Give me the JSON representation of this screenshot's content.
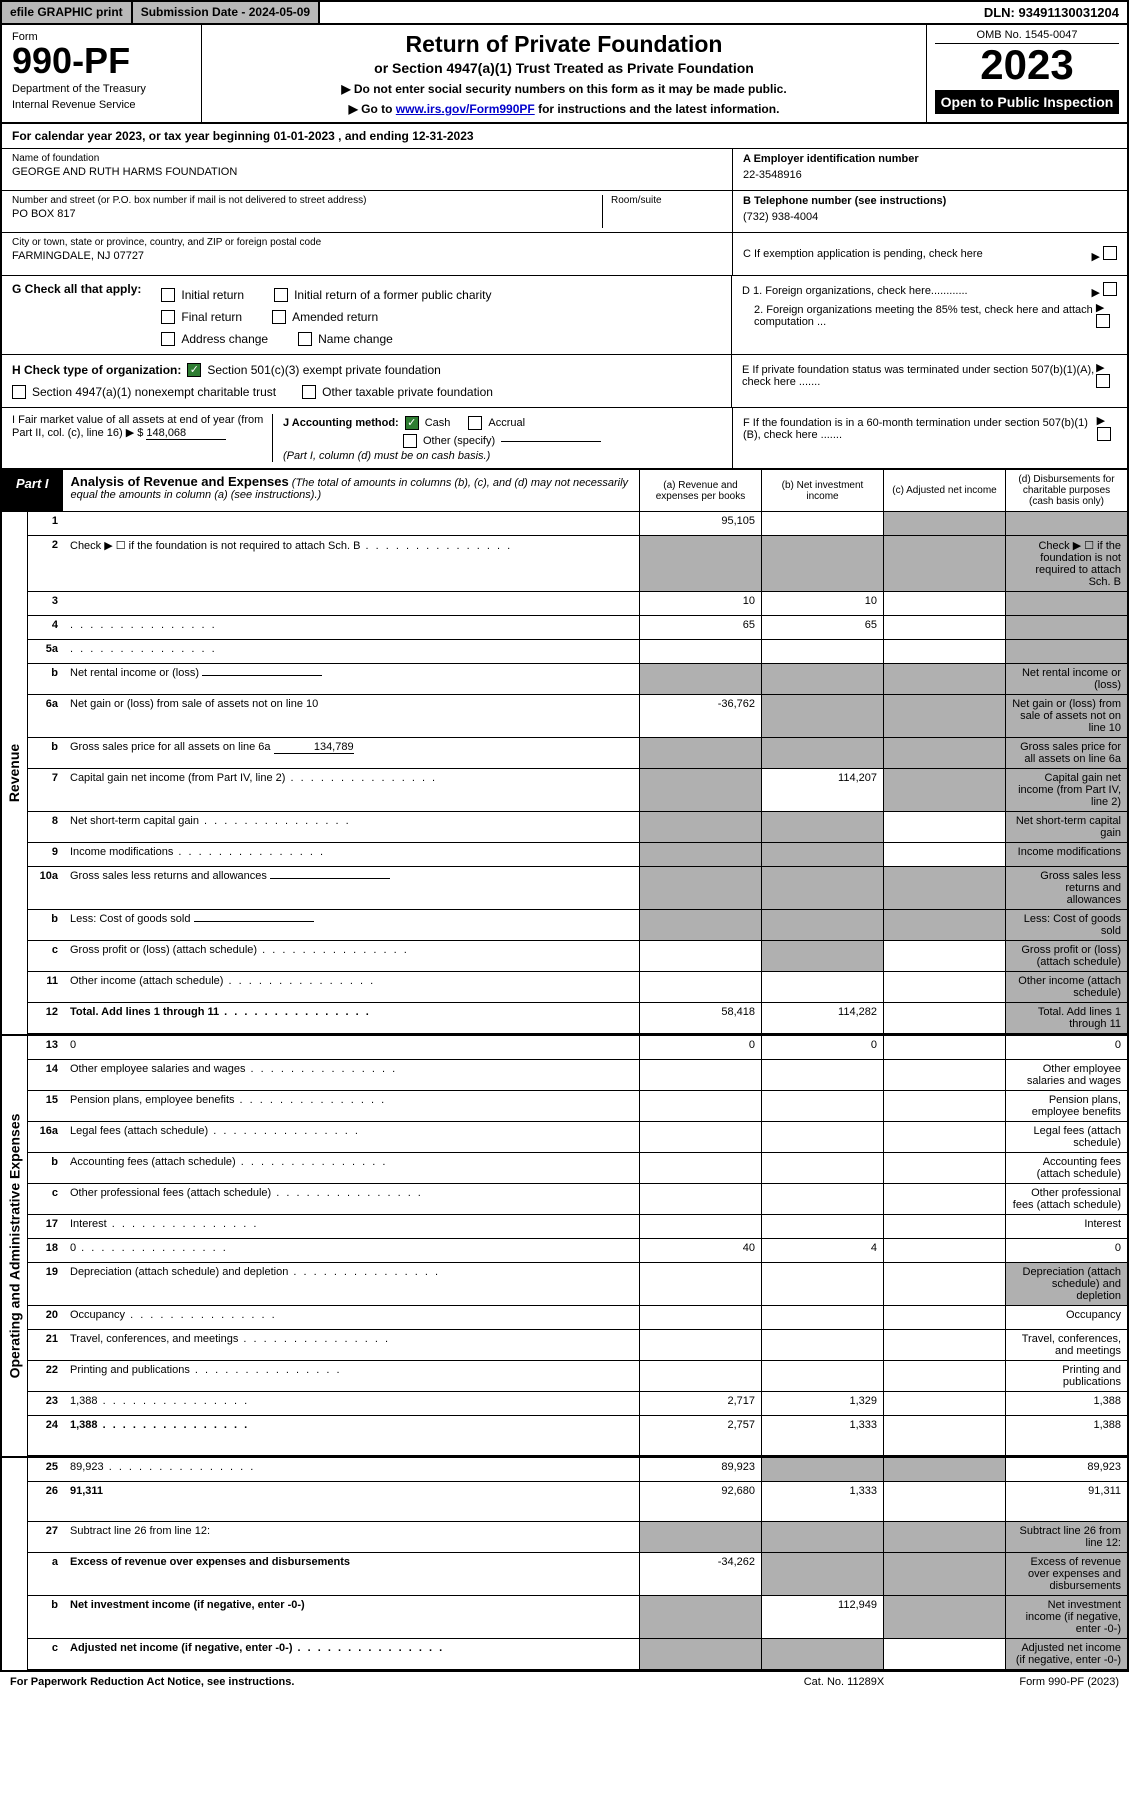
{
  "top_bar": {
    "efile": "efile GRAPHIC print",
    "sub_date_label": "Submission Date - ",
    "sub_date": "2024-05-09",
    "dln_label": "DLN: ",
    "dln": "93491130031204"
  },
  "header": {
    "form_label": "Form",
    "form_number": "990-PF",
    "dept": "Department of the Treasury",
    "irs": "Internal Revenue Service",
    "title_main": "Return of Private Foundation",
    "title_sub": "or Section 4947(a)(1) Trust Treated as Private Foundation",
    "note1": "▶ Do not enter social security numbers on this form as it may be made public.",
    "note2_pre": "▶ Go to ",
    "note2_link": "www.irs.gov/Form990PF",
    "note2_post": " for instructions and the latest information.",
    "omb": "OMB No. 1545-0047",
    "year": "2023",
    "open_public": "Open to Public Inspection"
  },
  "cal_year": {
    "text_pre": "For calendar year 2023, or tax year beginning ",
    "begin": "01-01-2023",
    "text_mid": " , and ending ",
    "end": "12-31-2023"
  },
  "foundation": {
    "name_label": "Name of foundation",
    "name": "GEORGE AND RUTH HARMS FOUNDATION",
    "addr_label": "Number and street (or P.O. box number if mail is not delivered to street address)",
    "addr": "PO BOX 817",
    "room_label": "Room/suite",
    "city_label": "City or town, state or province, country, and ZIP or foreign postal code",
    "city": "FARMINGDALE, NJ  07727",
    "ein_label": "A Employer identification number",
    "ein": "22-3548916",
    "phone_label": "B Telephone number (see instructions)",
    "phone": "(732) 938-4004",
    "c_label": "C If exemption application is pending, check here",
    "d1_label": "D 1. Foreign organizations, check here............",
    "d2_label": "2. Foreign organizations meeting the 85% test, check here and attach computation ...",
    "e_label": "E  If private foundation status was terminated under section 507(b)(1)(A), check here .......",
    "f_label": "F  If the foundation is in a 60-month termination under section 507(b)(1)(B), check here .......",
    "g_label": "G Check all that apply:",
    "g_opts": [
      "Initial return",
      "Initial return of a former public charity",
      "Final return",
      "Amended return",
      "Address change",
      "Name change"
    ],
    "h_label": "H Check type of organization:",
    "h_opt1": "Section 501(c)(3) exempt private foundation",
    "h_opt2": "Section 4947(a)(1) nonexempt charitable trust",
    "h_opt3": "Other taxable private foundation",
    "i_label": "I Fair market value of all assets at end of year (from Part II, col. (c), line 16) ▶ $",
    "i_value": "148,068",
    "j_label": "J Accounting method:",
    "j_cash": "Cash",
    "j_accrual": "Accrual",
    "j_other": "Other (specify)",
    "j_note": "(Part I, column (d) must be on cash basis.)"
  },
  "part1": {
    "label": "Part I",
    "title": "Analysis of Revenue and Expenses",
    "title_note": "(The total of amounts in columns (b), (c), and (d) may not necessarily equal the amounts in column (a) (see instructions).)",
    "col_a": "(a)   Revenue and expenses per books",
    "col_b": "(b)   Net investment income",
    "col_c": "(c)   Adjusted net income",
    "col_d": "(d)   Disbursements for charitable purposes (cash basis only)"
  },
  "side_labels": {
    "revenue": "Revenue",
    "expenses": "Operating and Administrative Expenses"
  },
  "rows": [
    {
      "n": "1",
      "d": "",
      "a": "95,105",
      "b": "",
      "c": "",
      "shade": [
        "c",
        "d"
      ]
    },
    {
      "n": "2",
      "d": "Check ▶ ☐ if the foundation is not required to attach Sch. B",
      "shade": [
        "a",
        "b",
        "c",
        "d"
      ],
      "dots": true
    },
    {
      "n": "3",
      "d": "",
      "a": "10",
      "b": "10",
      "c": "",
      "shade": [
        "d"
      ]
    },
    {
      "n": "4",
      "d": "",
      "a": "65",
      "b": "65",
      "c": "",
      "shade": [
        "d"
      ],
      "dots": true
    },
    {
      "n": "5a",
      "d": "",
      "a": "",
      "b": "",
      "c": "",
      "shade": [
        "d"
      ],
      "dots": true
    },
    {
      "n": "b",
      "d": "Net rental income or (loss)",
      "shade": [
        "a",
        "b",
        "c",
        "d"
      ],
      "inline": true
    },
    {
      "n": "6a",
      "d": "Net gain or (loss) from sale of assets not on line 10",
      "a": "-36,762",
      "shade": [
        "b",
        "c",
        "d"
      ]
    },
    {
      "n": "b",
      "d": "Gross sales price for all assets on line 6a",
      "inline_val": "134,789",
      "shade": [
        "a",
        "b",
        "c",
        "d"
      ]
    },
    {
      "n": "7",
      "d": "Capital gain net income (from Part IV, line 2)",
      "a": "",
      "b": "114,207",
      "shade": [
        "a",
        "c",
        "d"
      ],
      "dots": true
    },
    {
      "n": "8",
      "d": "Net short-term capital gain",
      "shade": [
        "a",
        "b",
        "d"
      ],
      "dots": true
    },
    {
      "n": "9",
      "d": "Income modifications",
      "shade": [
        "a",
        "b",
        "d"
      ],
      "dots": true
    },
    {
      "n": "10a",
      "d": "Gross sales less returns and allowances",
      "shade": [
        "a",
        "b",
        "c",
        "d"
      ],
      "inline": true
    },
    {
      "n": "b",
      "d": "Less: Cost of goods sold",
      "shade": [
        "a",
        "b",
        "c",
        "d"
      ],
      "inline": true,
      "dots": true
    },
    {
      "n": "c",
      "d": "Gross profit or (loss) (attach schedule)",
      "shade": [
        "b",
        "d"
      ],
      "dots": true
    },
    {
      "n": "11",
      "d": "Other income (attach schedule)",
      "shade": [
        "d"
      ],
      "dots": true
    },
    {
      "n": "12",
      "d": "Total. Add lines 1 through 11",
      "bold": true,
      "a": "58,418",
      "b": "114,282",
      "shade": [
        "d"
      ],
      "dots": true
    },
    {
      "n": "13",
      "d": "0",
      "a": "0",
      "b": "0",
      "c": ""
    },
    {
      "n": "14",
      "d": "Other employee salaries and wages",
      "dots": true
    },
    {
      "n": "15",
      "d": "Pension plans, employee benefits",
      "dots": true
    },
    {
      "n": "16a",
      "d": "Legal fees (attach schedule)",
      "dots": true
    },
    {
      "n": "b",
      "d": "Accounting fees (attach schedule)",
      "dots": true
    },
    {
      "n": "c",
      "d": "Other professional fees (attach schedule)",
      "dots": true
    },
    {
      "n": "17",
      "d": "Interest",
      "dots": true
    },
    {
      "n": "18",
      "d": "0",
      "a": "40",
      "b": "4",
      "c": "",
      "dots": true
    },
    {
      "n": "19",
      "d": "Depreciation (attach schedule) and depletion",
      "shade": [
        "d"
      ],
      "dots": true
    },
    {
      "n": "20",
      "d": "Occupancy",
      "dots": true
    },
    {
      "n": "21",
      "d": "Travel, conferences, and meetings",
      "dots": true
    },
    {
      "n": "22",
      "d": "Printing and publications",
      "dots": true
    },
    {
      "n": "23",
      "d": "1,388",
      "a": "2,717",
      "b": "1,329",
      "c": "",
      "dots": true
    },
    {
      "n": "24",
      "d": "1,388",
      "bold": true,
      "a": "2,757",
      "b": "1,333",
      "c": "",
      "dots": true,
      "tall": true
    },
    {
      "n": "25",
      "d": "89,923",
      "a": "89,923",
      "shade": [
        "b",
        "c"
      ],
      "dots": true
    },
    {
      "n": "26",
      "d": "91,311",
      "bold": true,
      "a": "92,680",
      "b": "1,333",
      "c": "",
      "tall": true
    },
    {
      "n": "27",
      "d": "Subtract line 26 from line 12:",
      "shade": [
        "a",
        "b",
        "c",
        "d"
      ]
    },
    {
      "n": "a",
      "d": "Excess of revenue over expenses and disbursements",
      "bold": true,
      "a": "-34,262",
      "shade": [
        "b",
        "c",
        "d"
      ]
    },
    {
      "n": "b",
      "d": "Net investment income (if negative, enter -0-)",
      "bold": true,
      "shade": [
        "a",
        "c",
        "d"
      ],
      "b": "112,949"
    },
    {
      "n": "c",
      "d": "Adjusted net income (if negative, enter -0-)",
      "bold": true,
      "shade": [
        "a",
        "b",
        "d"
      ],
      "dots": true
    }
  ],
  "footer": {
    "left": "For Paperwork Reduction Act Notice, see instructions.",
    "mid": "Cat. No. 11289X",
    "right": "Form 990-PF (2023)"
  },
  "colors": {
    "shaded": "#b0b0b0",
    "link": "#0000cc",
    "check": "#2e7d32"
  }
}
